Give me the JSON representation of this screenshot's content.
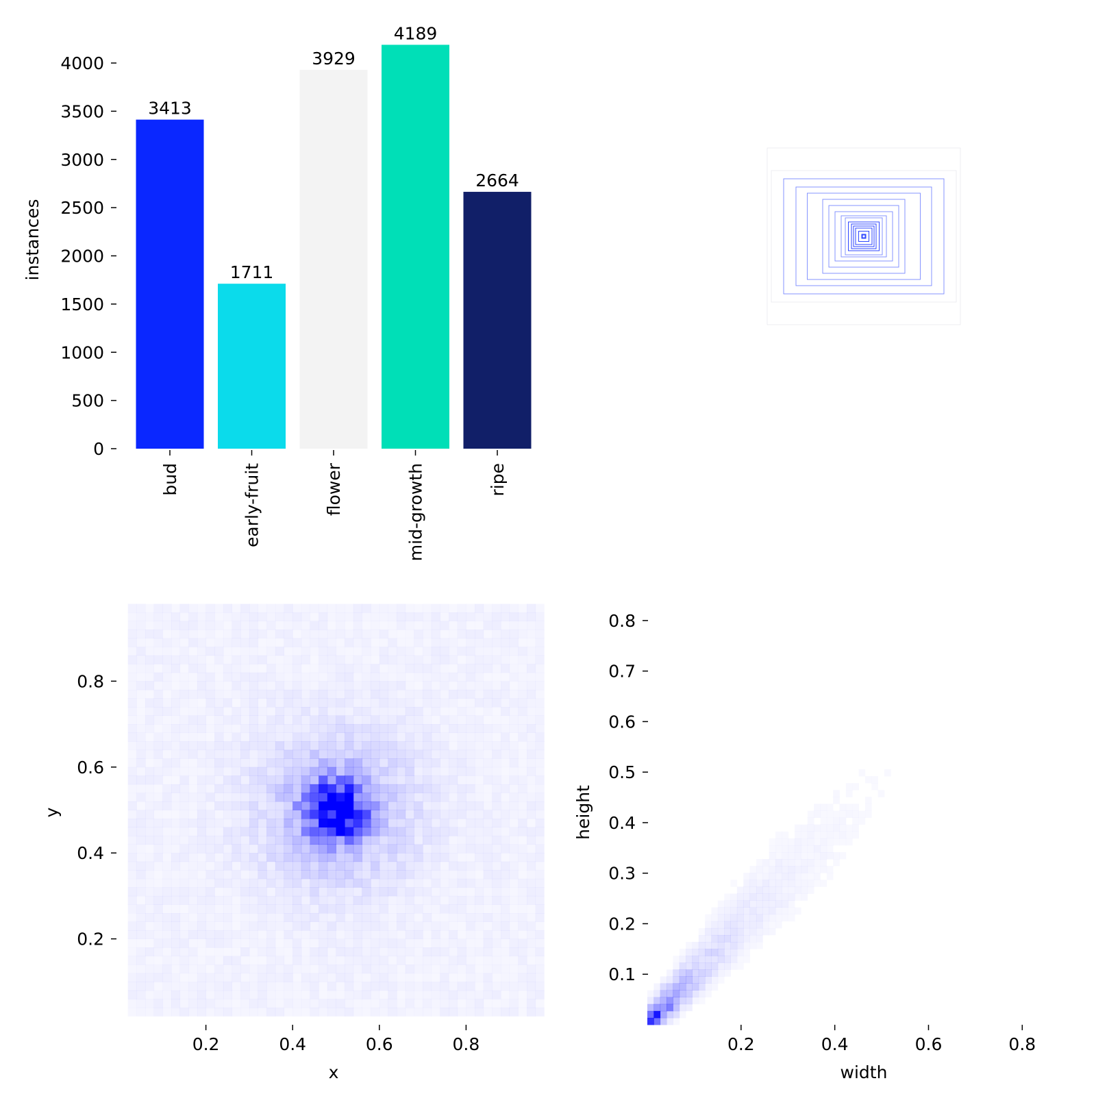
{
  "chart_data": [
    {
      "type": "bar",
      "categories": [
        "bud",
        "early-fruit",
        "flower",
        "mid-growth",
        "ripe"
      ],
      "values": [
        3413,
        1711,
        3929,
        4189,
        2664
      ],
      "colors": [
        "#0a27ff",
        "#0bdbeb",
        "#f3f3f3",
        "#00dfb7",
        "#111f68"
      ],
      "data_labels": [
        "3413",
        "1711",
        "3929",
        "4189",
        "2664"
      ],
      "title": "",
      "xlabel": "",
      "ylabel": "instances",
      "ylim": [
        0,
        4200
      ],
      "yticks": [
        0,
        500,
        1000,
        1500,
        2000,
        2500,
        3000,
        3500,
        4000
      ],
      "ytick_labels": [
        "0",
        "500",
        "1000",
        "1500",
        "2000",
        "2500",
        "3000",
        "3500",
        "4000"
      ],
      "grid": false,
      "legend": "none"
    },
    {
      "type": "other",
      "description_kind": "overlaid bounding boxes (centered, normalized)",
      "color": "#0a27ff",
      "boxes_wh": [
        [
          0.02,
          0.02
        ],
        [
          0.05,
          0.05
        ],
        [
          0.08,
          0.08
        ],
        [
          0.1,
          0.1
        ],
        [
          0.12,
          0.12
        ],
        [
          0.15,
          0.14
        ],
        [
          0.18,
          0.18
        ],
        [
          0.22,
          0.2
        ],
        [
          0.28,
          0.24
        ],
        [
          0.34,
          0.3
        ],
        [
          0.4,
          0.36
        ],
        [
          0.55,
          0.42
        ],
        [
          0.66,
          0.48
        ],
        [
          0.78,
          0.56
        ],
        [
          0.9,
          0.64
        ],
        [
          0.94,
          0.86
        ]
      ],
      "grid": false
    },
    {
      "type": "heatmap",
      "xlabel": "x",
      "ylabel": "y",
      "xlim": [
        0,
        1
      ],
      "ylim": [
        0,
        1
      ],
      "xticks": [
        0.2,
        0.4,
        0.6,
        0.8
      ],
      "xtick_labels": [
        "0.2",
        "0.4",
        "0.6",
        "0.8"
      ],
      "yticks": [
        0.2,
        0.4,
        0.6,
        0.8
      ],
      "ytick_labels": [
        "0.2",
        "0.4",
        "0.6",
        "0.8"
      ],
      "peak": [
        0.5,
        0.5
      ],
      "color": "#0000ff",
      "grid": false
    },
    {
      "type": "heatmap",
      "xlabel": "width",
      "ylabel": "height",
      "xlim": [
        0,
        0.85
      ],
      "ylim": [
        0,
        0.85
      ],
      "xticks": [
        0.2,
        0.4,
        0.6,
        0.8
      ],
      "xtick_labels": [
        "0.2",
        "0.4",
        "0.6",
        "0.8"
      ],
      "yticks": [
        0.1,
        0.2,
        0.3,
        0.4,
        0.5,
        0.6,
        0.7,
        0.8
      ],
      "ytick_labels": [
        "0.1",
        "0.2",
        "0.3",
        "0.4",
        "0.5",
        "0.6",
        "0.7",
        "0.8"
      ],
      "peak": [
        0.03,
        0.02
      ],
      "color": "#0000ff",
      "grid": false
    }
  ]
}
